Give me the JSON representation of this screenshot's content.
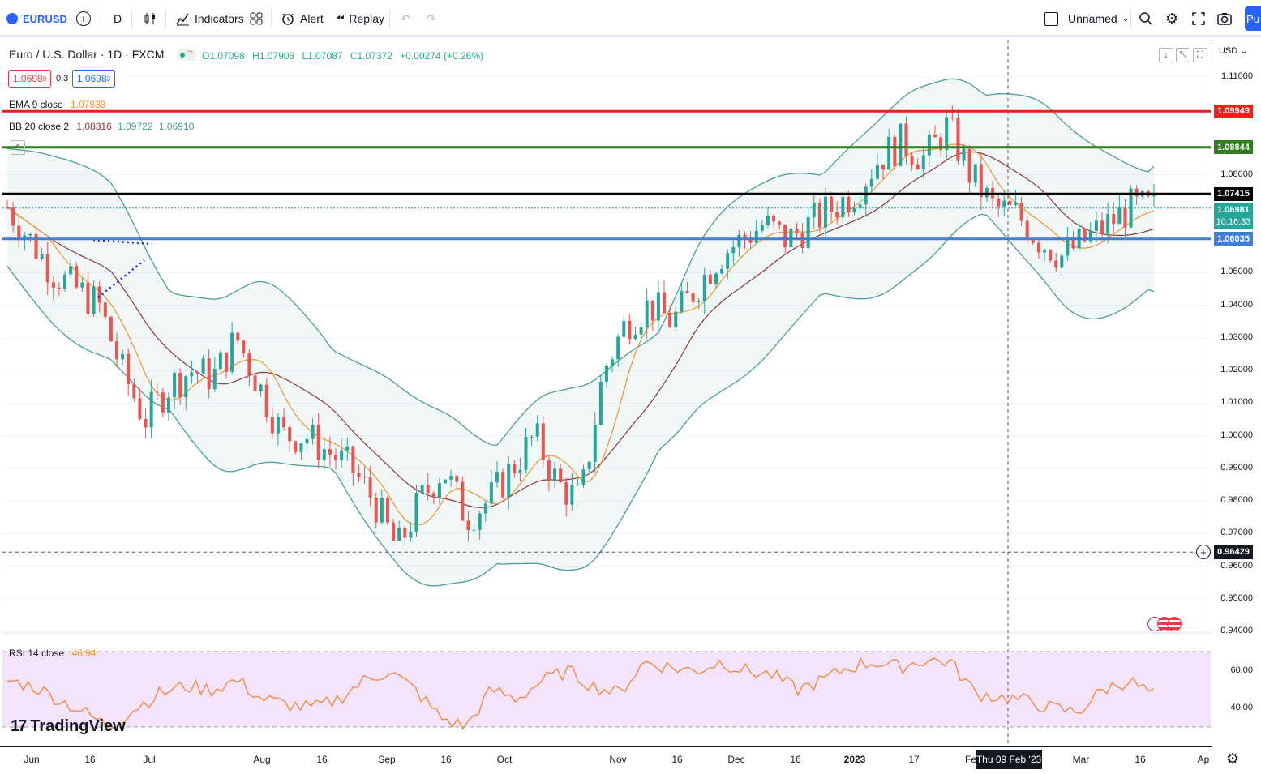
{
  "toolbar": {
    "symbol": "EURUSD",
    "interval": "D",
    "indicators_label": "Indicators",
    "alert_label": "Alert",
    "replay_label": "Replay",
    "layout_name": "Unnamed",
    "publish_label": "Pu"
  },
  "legend": {
    "title": "Euro / U.S. Dollar · 1D · FXCM",
    "open": "O1.07098",
    "high": "H1.07908",
    "low": "L1.07087",
    "close": "C1.07372",
    "change": "+0.00274 (+0.26%)",
    "sell_price": "1.0698",
    "sell_sup": "0",
    "spread": "0.3",
    "buy_price": "1.0698",
    "buy_sup": "3",
    "ema_label": "EMA 9 close",
    "ema_value": "1.07833",
    "bb_label": "BB 20 close 2",
    "bb_basis": "1.08316",
    "bb_upper": "1.09722",
    "bb_lower": "1.06910",
    "rsi_label": "RSI 14 close",
    "rsi_value": "46.94",
    "watermark": "TradingView"
  },
  "price_axis": {
    "currency": "USD",
    "labels": [
      "1.11000",
      "1.08000",
      "1.07000",
      "1.05000",
      "1.04000",
      "1.03000",
      "1.02000",
      "1.01000",
      "1.00000",
      "0.99000",
      "0.98000",
      "0.97000",
      "0.96000",
      "0.95000",
      "0.94000"
    ],
    "rsi_labels": [
      "60.00",
      "40.00"
    ]
  },
  "price_tags": {
    "red_level": "1.09949",
    "green_level": "1.08844",
    "black_level": "1.07415",
    "current_price": "1.06981",
    "countdown": "10:16:33",
    "blue_level": "1.06035",
    "crosshair_price": "0.96429"
  },
  "time_axis": {
    "labels": [
      "Jun",
      "16",
      "Jul",
      "Aug",
      "16",
      "Sep",
      "16",
      "Oct",
      "Nov",
      "16",
      "Dec",
      "16",
      "2023",
      "17",
      "Fe",
      "Mar",
      "16",
      "Ap"
    ],
    "crosshair_date": "Thu 09 Feb '23"
  },
  "colors": {
    "up": "#26a69a",
    "down": "#ef5350",
    "red_line": "#f21d1d",
    "green_line": "#2f7d1c",
    "black_line": "#000000",
    "blue_line": "#3f7fd6",
    "ema": "#f0952c",
    "bb_band": "#4a9e9a",
    "bb_basis": "#8b3a3a",
    "rsi_line": "#f28b42",
    "rsi_zone": "#f3e3fb",
    "accent": "#2962ff"
  },
  "chart_data": {
    "type": "candlestick",
    "symbol": "EURUSD",
    "timeframe": "1D",
    "x_range": [
      "Jun 2022",
      "Mar 2023"
    ],
    "ylim": [
      0.94,
      1.11
    ],
    "series": [
      {
        "name": "EURUSD",
        "approx_closes": [
          1.07,
          1.06,
          1.05,
          1.045,
          1.04,
          1.02,
          1.005,
          1.015,
          1.02,
          1.018,
          1.03,
          1.015,
          1.0,
          1.0,
          0.995,
          0.99,
          0.98,
          0.965,
          0.98,
          0.99,
          0.975,
          0.98,
          0.99,
          1.0,
          0.985,
          0.98,
          1.02,
          1.035,
          1.04,
          1.035,
          1.045,
          1.055,
          1.06,
          1.065,
          1.06,
          1.065,
          1.07,
          1.075,
          1.085,
          1.09,
          1.085,
          1.095,
          1.08,
          1.07,
          1.068,
          1.06,
          1.055,
          1.06,
          1.065,
          1.07,
          1.0698
        ]
      },
      {
        "name": "EMA 9 close",
        "last": 1.07833
      },
      {
        "name": "BB 20 close 2",
        "last_basis": 1.08316,
        "last_upper": 1.09722,
        "last_lower": 1.0691
      },
      {
        "name": "RSI 14 close",
        "last": 46.94,
        "approx_values": [
          55,
          52,
          45,
          38,
          30,
          40,
          48,
          52,
          50,
          55,
          45,
          42,
          40,
          45,
          55,
          60,
          50,
          35,
          30,
          50,
          45,
          55,
          60,
          52,
          48,
          65,
          62,
          60,
          65,
          60,
          58,
          50,
          55,
          62,
          65,
          62,
          66,
          65,
          48,
          46,
          44,
          40,
          38,
          50,
          55,
          46.94
        ]
      }
    ],
    "horizontal_levels": [
      1.09949,
      1.08844,
      1.07415,
      1.06035,
      0.96429
    ]
  }
}
